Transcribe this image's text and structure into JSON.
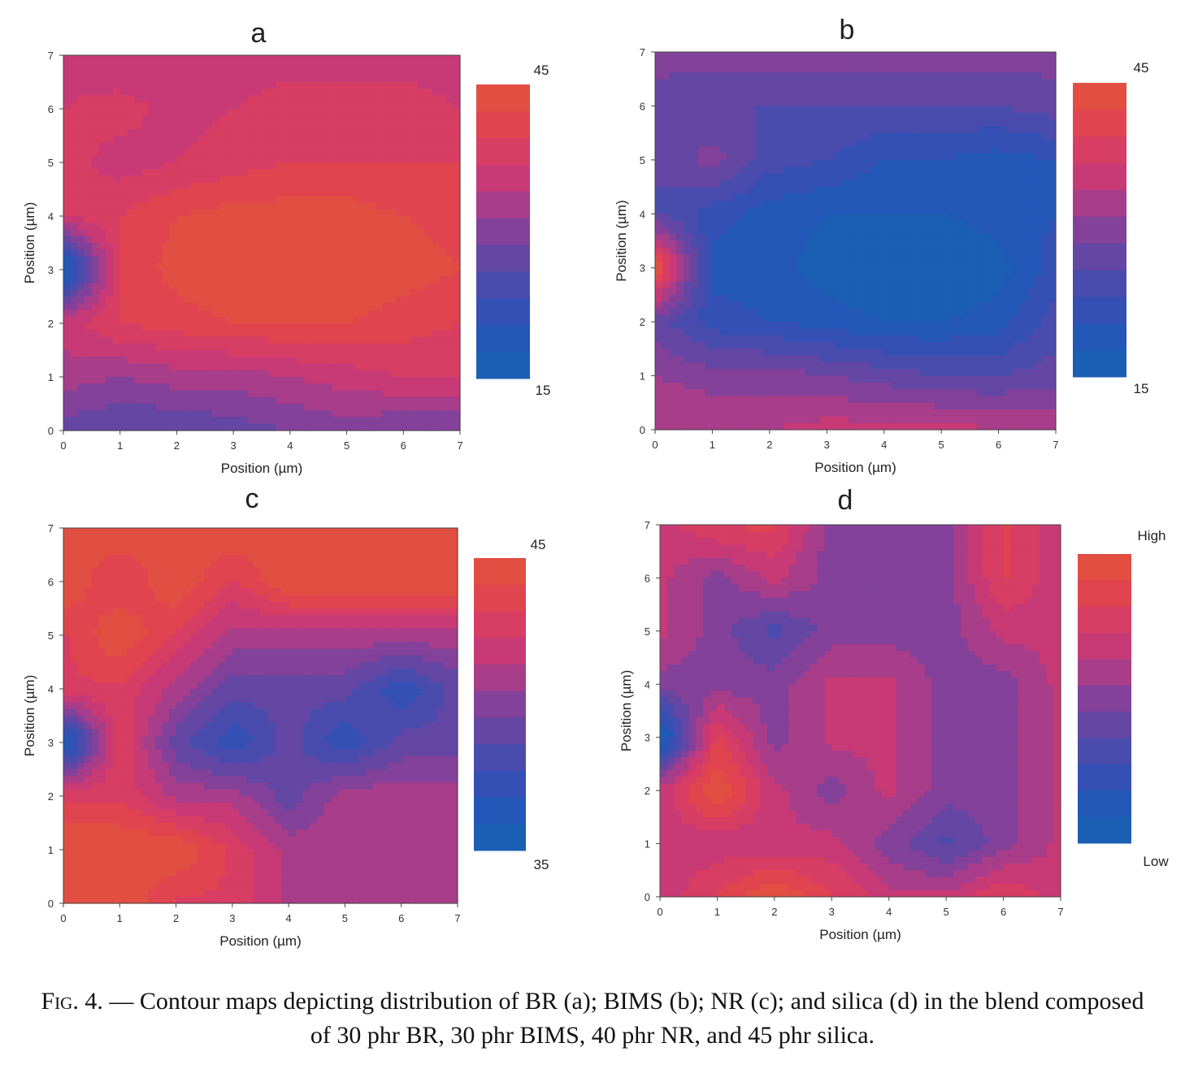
{
  "chart_data": [
    {
      "type": "heatmap",
      "title": "a",
      "xlabel": "Position (µm)",
      "ylabel": "Position (µm)",
      "xlim": [
        0,
        7
      ],
      "ylim": [
        0,
        7
      ],
      "xticks": [
        "0",
        "1",
        "2",
        "3",
        "4",
        "5",
        "6",
        "7"
      ],
      "yticks": [
        "0",
        "1",
        "2",
        "3",
        "4",
        "5",
        "6",
        "7"
      ],
      "colorbar": {
        "max_label": "45",
        "min_label": "15"
      },
      "x": [
        0,
        1,
        2,
        3,
        4,
        5,
        6,
        7
      ],
      "y": [
        0,
        1,
        2,
        3,
        4,
        5,
        6,
        7
      ],
      "z": [
        [
          27,
          26,
          26,
          27,
          28,
          29,
          28,
          28
        ],
        [
          31,
          30,
          31,
          31,
          32,
          33,
          34,
          34
        ],
        [
          33,
          36,
          37,
          38,
          38,
          38,
          37,
          36
        ],
        [
          18,
          36,
          39,
          40,
          39,
          40,
          39,
          38
        ],
        [
          34,
          36,
          38,
          39,
          39,
          39,
          38,
          37
        ],
        [
          35,
          33,
          34,
          35,
          36,
          36,
          36,
          36
        ],
        [
          34,
          35,
          33,
          34,
          35,
          35,
          35,
          34
        ],
        [
          33,
          32,
          33,
          33,
          33,
          33,
          33,
          33
        ]
      ]
    },
    {
      "type": "heatmap",
      "title": "b",
      "xlabel": "Position (µm)",
      "ylabel": "Position (µm)",
      "xlim": [
        0,
        7
      ],
      "ylim": [
        0,
        7
      ],
      "xticks": [
        "0",
        "1",
        "2",
        "3",
        "4",
        "5",
        "6",
        "7"
      ],
      "yticks": [
        "0",
        "1",
        "2",
        "3",
        "4",
        "5",
        "6",
        "7"
      ],
      "colorbar": {
        "max_label": "45",
        "min_label": "15"
      },
      "x": [
        0,
        1,
        2,
        3,
        4,
        5,
        6,
        7
      ],
      "y": [
        0,
        1,
        2,
        3,
        4,
        5,
        6,
        7
      ],
      "z": [
        [
          33,
          33,
          33,
          34,
          34,
          34,
          33,
          33
        ],
        [
          31,
          30,
          30,
          29,
          28,
          27,
          27,
          28
        ],
        [
          28,
          24,
          23,
          22,
          21,
          21,
          22,
          26
        ],
        [
          41,
          22,
          22,
          20,
          19,
          19,
          20,
          24
        ],
        [
          27,
          24,
          22,
          21,
          21,
          21,
          22,
          23
        ],
        [
          27,
          30,
          26,
          25,
          23,
          23,
          22,
          23
        ],
        [
          28,
          27,
          27,
          27,
          27,
          27,
          27,
          28
        ],
        [
          30,
          30,
          30,
          30,
          30,
          30,
          30,
          30
        ]
      ]
    },
    {
      "type": "heatmap",
      "title": "c",
      "xlabel": "Position (µm)",
      "ylabel": "Position (µm)",
      "xlim": [
        0,
        7
      ],
      "ylim": [
        0,
        7
      ],
      "xticks": [
        "0",
        "1",
        "2",
        "3",
        "4",
        "5",
        "6",
        "7"
      ],
      "yticks": [
        "0",
        "1",
        "2",
        "3",
        "4",
        "5",
        "6",
        "7"
      ],
      "colorbar": {
        "max_label": "45",
        "min_label": "35"
      },
      "x": [
        0,
        1,
        2,
        3,
        4,
        5,
        6,
        7
      ],
      "y": [
        0,
        1,
        2,
        3,
        4,
        5,
        6,
        7
      ],
      "z": [
        [
          41,
          41,
          40,
          40,
          39,
          39,
          39,
          39
        ],
        [
          41,
          41,
          41,
          40,
          39,
          39,
          39,
          39
        ],
        [
          40,
          40,
          39,
          39,
          38,
          39,
          39,
          39
        ],
        [
          36,
          40,
          38,
          37,
          38,
          37,
          38,
          38
        ],
        [
          40,
          40,
          39,
          38,
          38,
          38,
          37,
          38
        ],
        [
          40,
          41,
          40,
          39,
          39,
          39,
          39,
          39
        ],
        [
          41,
          40,
          41,
          40,
          41,
          41,
          41,
          41
        ],
        [
          41,
          41,
          41,
          41,
          41,
          41,
          41,
          41
        ]
      ]
    },
    {
      "type": "heatmap",
      "title": "d",
      "xlabel": "Position (µm)",
      "ylabel": "Position (µm)",
      "xlim": [
        0,
        7
      ],
      "ylim": [
        0,
        7
      ],
      "xticks": [
        "0",
        "1",
        "2",
        "3",
        "4",
        "5",
        "6",
        "7"
      ],
      "yticks": [
        "0",
        "1",
        "2",
        "3",
        "4",
        "5",
        "6",
        "7"
      ],
      "colorbar": {
        "max_label": "High",
        "min_label": "Low"
      },
      "x": [
        0,
        1,
        2,
        3,
        4,
        5,
        6,
        7
      ],
      "y": [
        0,
        1,
        2,
        3,
        4,
        5,
        6,
        7
      ],
      "z": [
        [
          6,
          7,
          8,
          7,
          6,
          6,
          7,
          6
        ],
        [
          6,
          6,
          6,
          6,
          5,
          4,
          5,
          6
        ],
        [
          6,
          8,
          6,
          5,
          6,
          5,
          5,
          6
        ],
        [
          2,
          7,
          5,
          6,
          6,
          5,
          5,
          6
        ],
        [
          5,
          5,
          5,
          6,
          6,
          5,
          5,
          6
        ],
        [
          6,
          5,
          4,
          5,
          5,
          5,
          6,
          6
        ],
        [
          6,
          5,
          6,
          5,
          5,
          5,
          7,
          6
        ],
        [
          6,
          7,
          7,
          5,
          5,
          5,
          7,
          6
        ]
      ]
    }
  ],
  "caption": {
    "label": "Fig. 4. —",
    "text": "Contour maps depicting distribution of BR (a); BIMS (b); NR (c); and silica (d) in the blend composed of 30 phr BR, 30 phr BIMS, 40 phr NR, and 45 phr silica."
  }
}
